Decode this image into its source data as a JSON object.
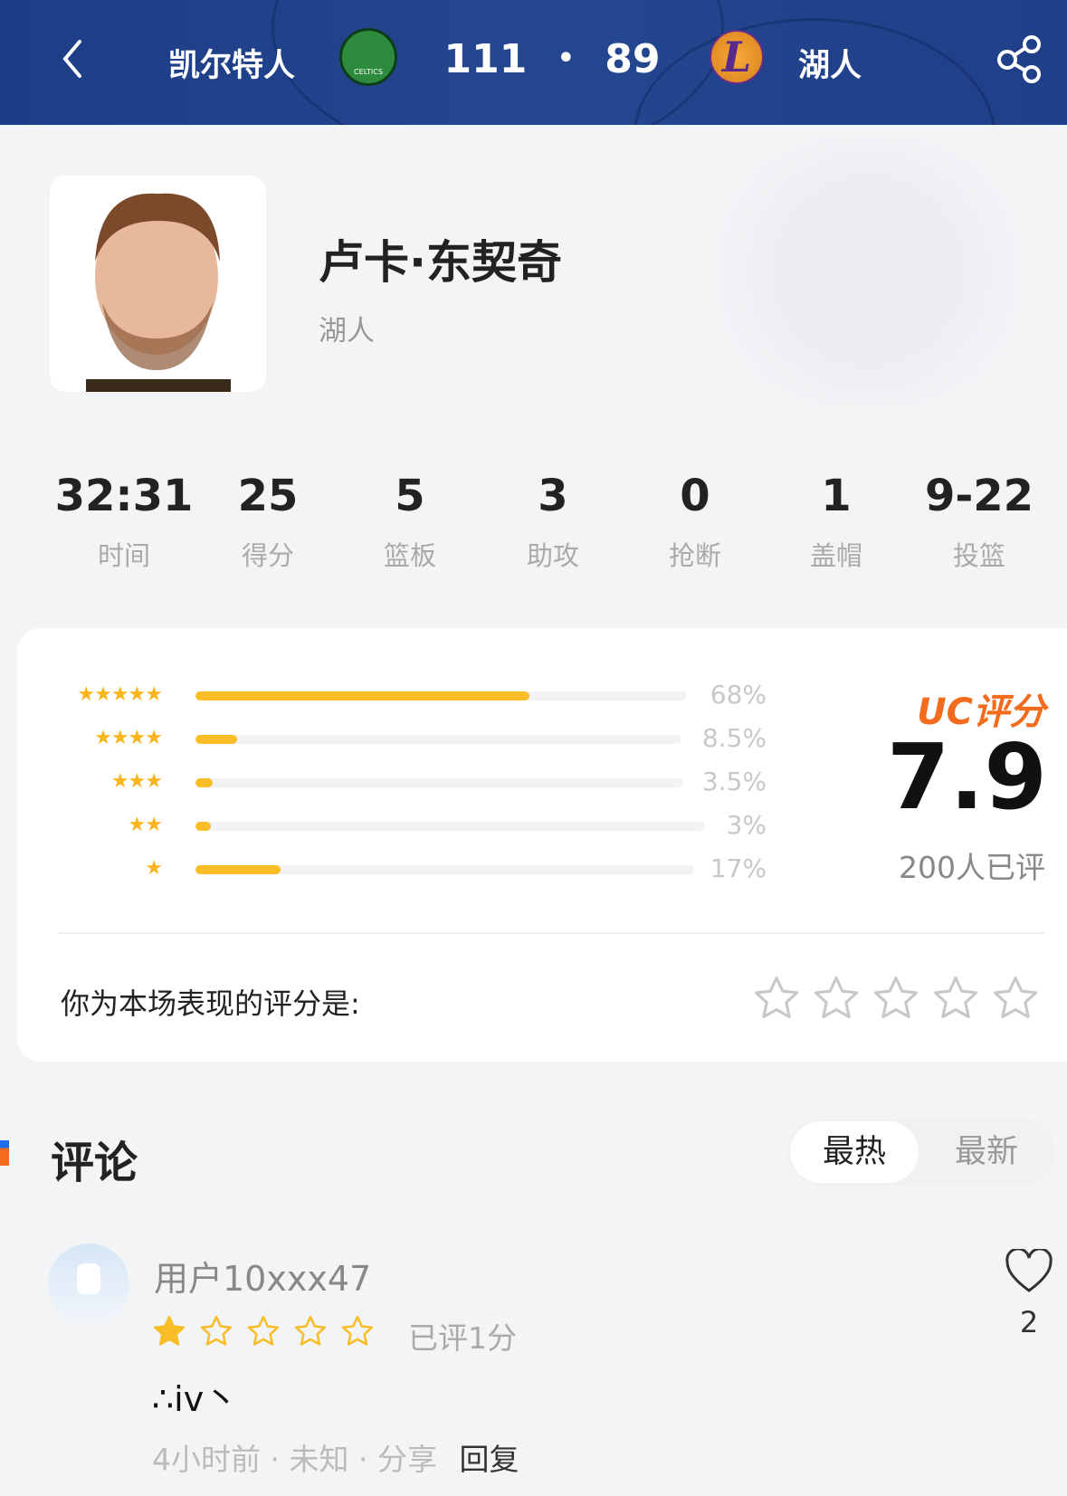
{
  "header": {
    "home_team": "凯尔特人",
    "away_team": "湖人",
    "home_score": "111",
    "separator": "•",
    "away_score": "89",
    "home_logo": "CELTICS",
    "away_logo": "L"
  },
  "player": {
    "name": "卢卡·东契奇",
    "team": "湖人"
  },
  "stats": [
    {
      "value": "32:31",
      "label": "时间"
    },
    {
      "value": "25",
      "label": "得分"
    },
    {
      "value": "5",
      "label": "篮板"
    },
    {
      "value": "3",
      "label": "助攻"
    },
    {
      "value": "0",
      "label": "抢断"
    },
    {
      "value": "1",
      "label": "盖帽"
    },
    {
      "value": "9-22",
      "label": "投篮"
    }
  ],
  "rating": {
    "distribution": [
      {
        "stars": 5,
        "percent_label": "68%",
        "percent": 68
      },
      {
        "stars": 4,
        "percent_label": "8.5%",
        "percent": 8.5
      },
      {
        "stars": 3,
        "percent_label": "3.5%",
        "percent": 3.5
      },
      {
        "stars": 2,
        "percent_label": "3%",
        "percent": 3
      },
      {
        "stars": 1,
        "percent_label": "17%",
        "percent": 17
      }
    ],
    "brand": "UC评分",
    "score": "7.9",
    "count": "200人已评",
    "prompt": "你为本场表现的评分是:",
    "user_rating": 0,
    "accent": "#f36b1c",
    "bar_color": "#f9bd27"
  },
  "comments": {
    "title": "评论",
    "tabs": [
      {
        "label": "最热",
        "active": true
      },
      {
        "label": "最新",
        "active": false
      }
    ],
    "items": [
      {
        "user": "用户10xxx47",
        "rating": 1,
        "rating_label": "已评1分",
        "content": "∴iv丶",
        "time": "4小时前",
        "location": "未知",
        "share": "分享",
        "reply": "回复",
        "likes": "2"
      }
    ]
  }
}
